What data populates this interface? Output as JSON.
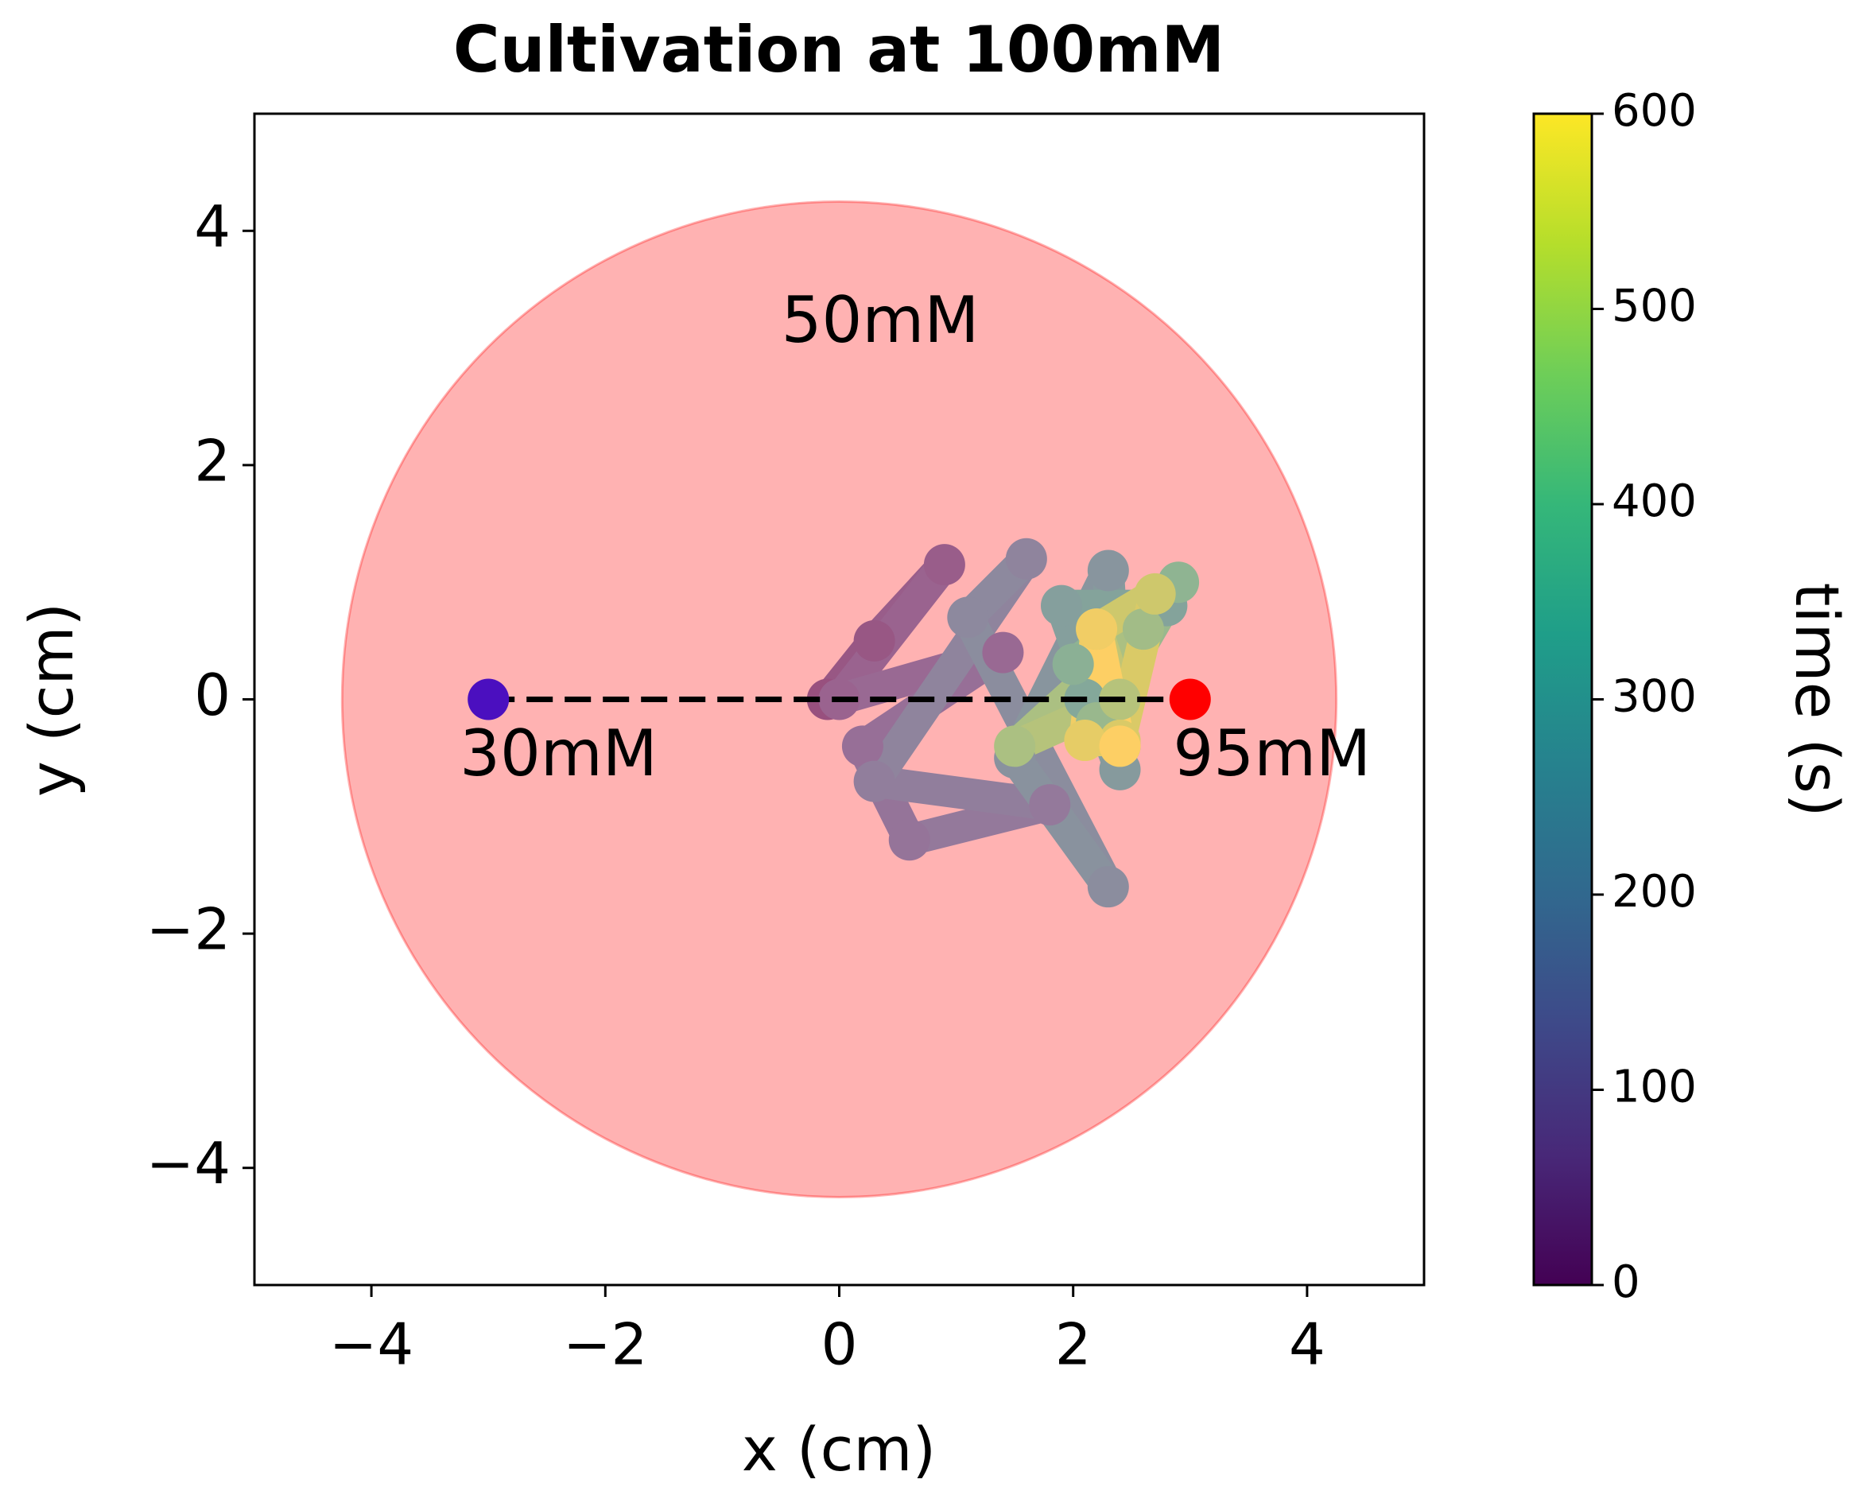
{
  "chart_data": {
    "type": "trajectory",
    "title": "Cultivation at 100mM",
    "x_label": "x (cm)",
    "y_label": "y (cm)",
    "xlim": [
      -5,
      5
    ],
    "ylim": [
      -5,
      5
    ],
    "xticks": [
      {
        "value": -4,
        "label": "−4"
      },
      {
        "value": -2,
        "label": "−2"
      },
      0,
      2,
      4
    ],
    "yticks": [
      {
        "value": -4,
        "label": "−4"
      },
      {
        "value": -2,
        "label": "−2"
      },
      0,
      2,
      4
    ],
    "region": {
      "label": "50mM",
      "cx": 0,
      "cy": 0,
      "r": 4.25,
      "color": "#ff0000",
      "label_x": 0.35,
      "label_y": 3.2
    },
    "source": {
      "label": "30mM",
      "x": -3,
      "y": 0,
      "color": "#4b0fbf",
      "label_x": -2.4,
      "label_y": -0.5
    },
    "target": {
      "label": "95mM",
      "x": 3,
      "y": 0,
      "color": "#ff0000",
      "label_x": 3.7,
      "label_y": -0.5
    },
    "trajectory": {
      "t": [
        0,
        20,
        40,
        60,
        80,
        100,
        120,
        140,
        160,
        180,
        200,
        220,
        240,
        260,
        280,
        300,
        320,
        340,
        360,
        380,
        400,
        420,
        440,
        460,
        480,
        500,
        520,
        540,
        560,
        580,
        600
      ],
      "x": [
        -0.1,
        0.3,
        0.9,
        0.0,
        1.4,
        0.2,
        0.6,
        1.8,
        0.3,
        1.6,
        1.1,
        2.3,
        1.5,
        2.3,
        2.4,
        1.9,
        2.8,
        2.1,
        2.4,
        2.0,
        2.9,
        2.2,
        2.6,
        1.5,
        2.4,
        2.2,
        2.7,
        2.4,
        2.1,
        2.2,
        2.4
      ],
      "y": [
        0.0,
        0.5,
        1.15,
        0.0,
        0.4,
        -0.4,
        -1.2,
        -0.9,
        -0.7,
        1.2,
        0.7,
        -1.6,
        -0.5,
        1.1,
        -0.6,
        0.8,
        0.8,
        0.0,
        -0.4,
        0.3,
        1.0,
        -0.2,
        0.6,
        -0.4,
        0.0,
        0.6,
        0.9,
        -0.35,
        -0.35,
        0.6,
        -0.4
      ]
    },
    "colorbar": {
      "label": "time (s)",
      "colormap": "viridis",
      "lim": [
        0,
        600
      ],
      "ticks": [
        0,
        100,
        200,
        300,
        400,
        500,
        600
      ]
    }
  }
}
